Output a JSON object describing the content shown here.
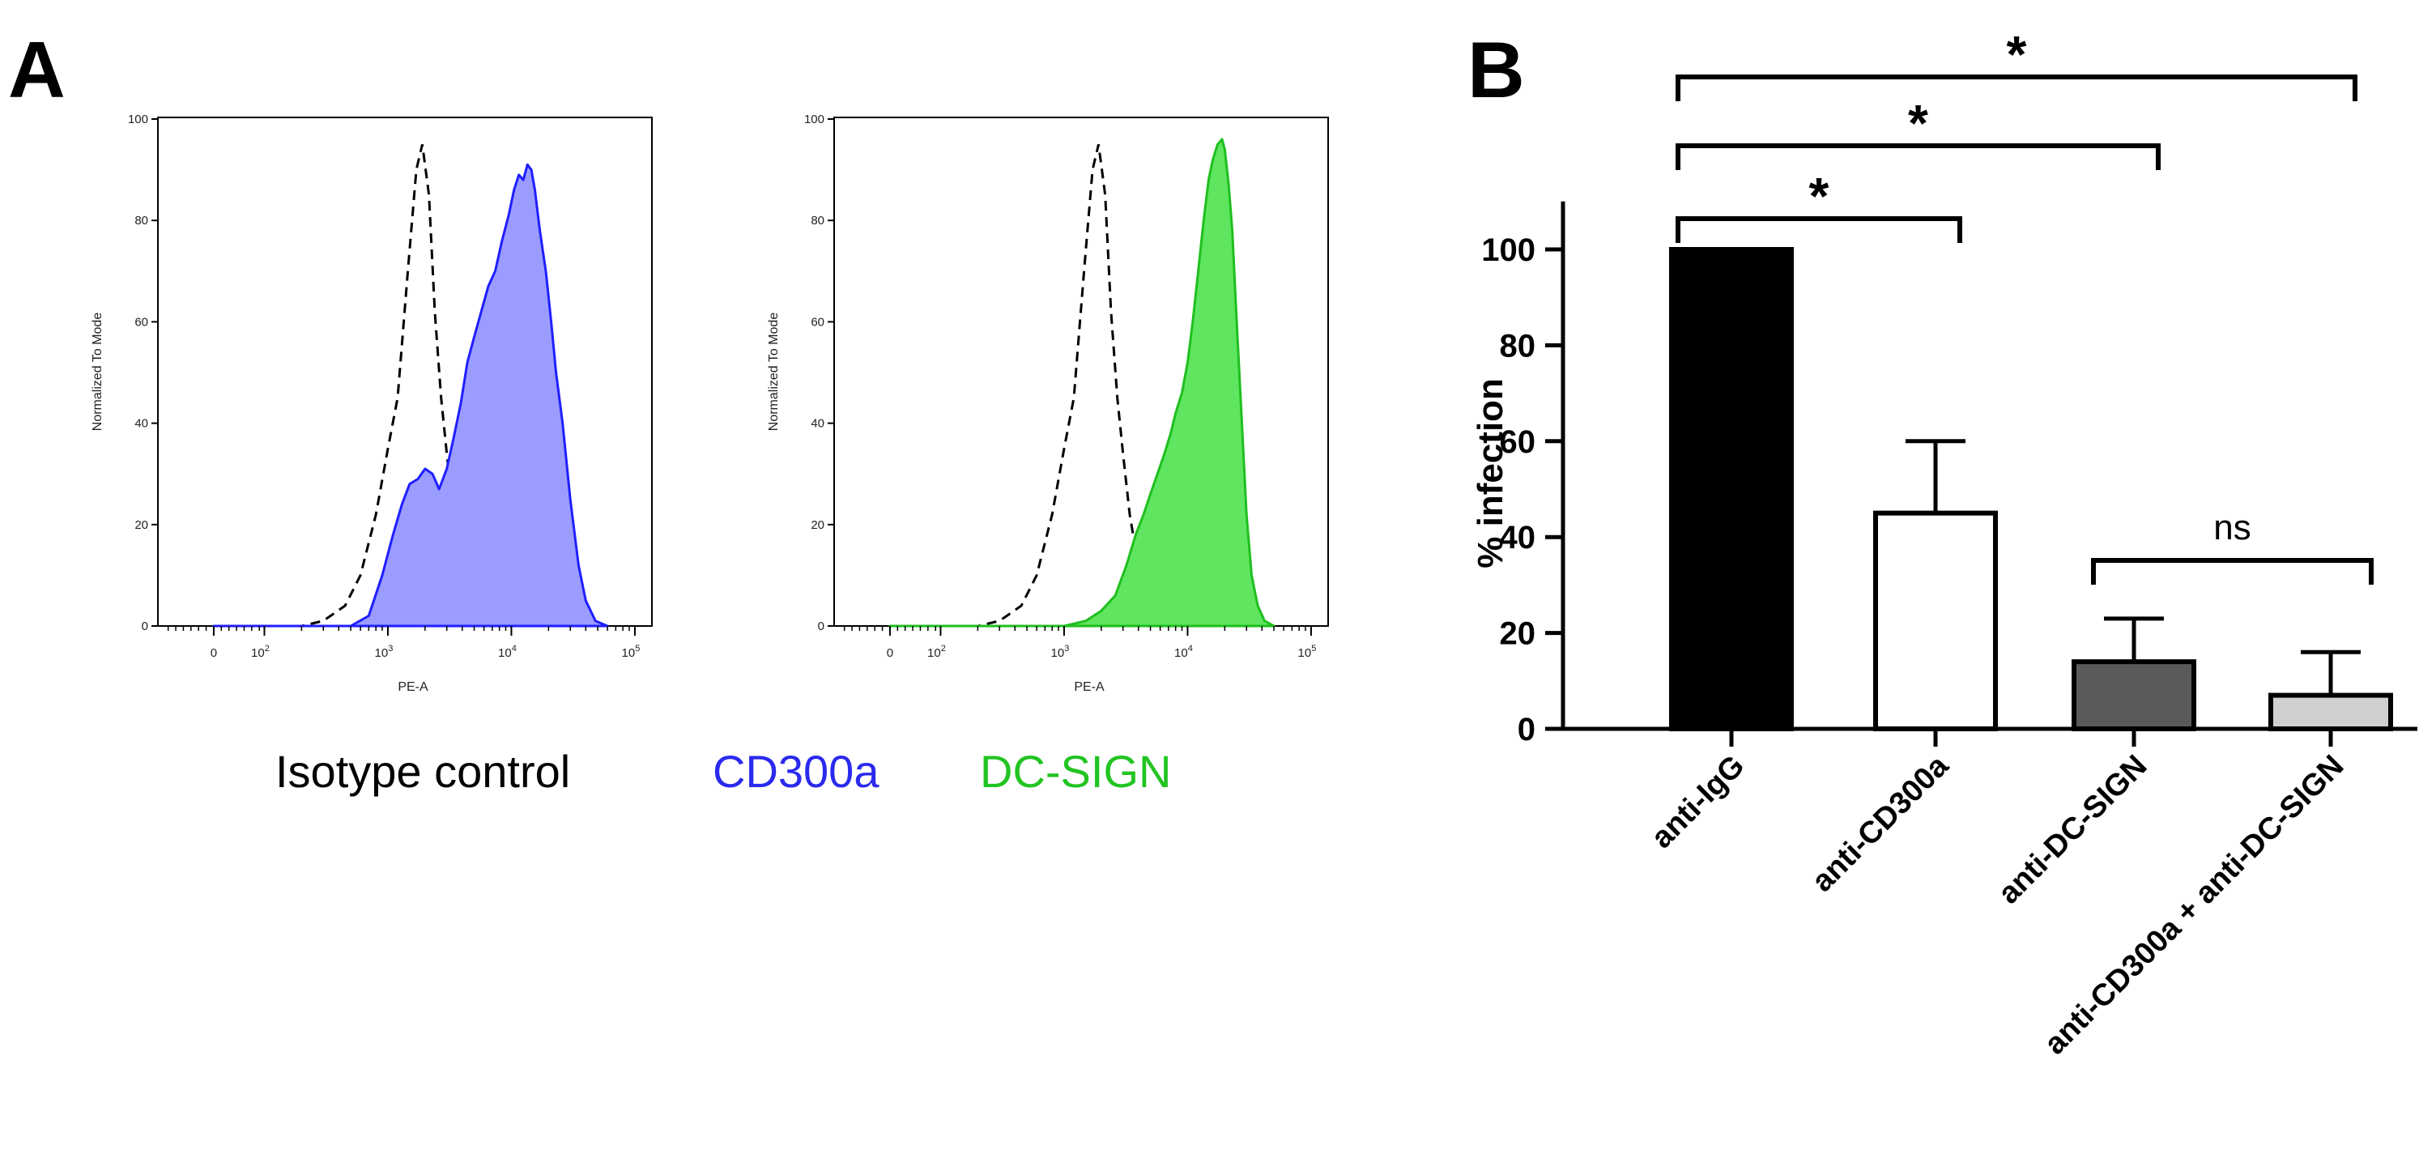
{
  "panels": {
    "a_letter": "A",
    "b_letter": "B"
  },
  "legend": [
    {
      "label": "Isotype control",
      "color": "#000000"
    },
    {
      "label": "CD300a",
      "color": "#2a2aee"
    },
    {
      "label": "DC-SIGN",
      "color": "#22c422"
    }
  ],
  "colors": {
    "cd300a_fill": "#9b9cff",
    "cd300a_line": "#1f1fff",
    "dcsign_fill": "#5fe55f",
    "dcsign_line": "#1fbf1f",
    "bar_igg": "#000000",
    "bar_cd300a": "#ffffff",
    "bar_dcsign": "#5a5a5a",
    "bar_combo": "#cfcfcf"
  },
  "chart_data": [
    {
      "type": "area",
      "panel": "A",
      "xlabel": "PE-A",
      "ylabel": "Normalized To Mode",
      "x_scale": "biexponential",
      "ylim": [
        0,
        100
      ],
      "yticks": [
        0,
        20,
        40,
        60,
        80,
        100
      ],
      "xticks": [
        {
          "value": 0,
          "label": "0"
        },
        {
          "value": 100,
          "label": "10",
          "exp": "2"
        },
        {
          "value": 1000,
          "label": "10",
          "exp": "3"
        },
        {
          "value": 10000,
          "label": "10",
          "exp": "4"
        },
        {
          "value": 100000,
          "label": "10",
          "exp": "5"
        }
      ],
      "series": [
        {
          "style": "dashed-outline",
          "points": [
            [
              0,
              0
            ],
            [
              200,
              0
            ],
            [
              300,
              1
            ],
            [
              450,
              4
            ],
            [
              600,
              10
            ],
            [
              800,
              22
            ],
            [
              1000,
              35
            ],
            [
              1200,
              45
            ],
            [
              1450,
              70
            ],
            [
              1700,
              90
            ],
            [
              1900,
              95
            ],
            [
              2150,
              85
            ],
            [
              2400,
              62
            ],
            [
              2700,
              45
            ],
            [
              3000,
              34
            ],
            [
              3400,
              22
            ],
            [
              3800,
              15
            ],
            [
              4300,
              8
            ],
            [
              5000,
              3
            ],
            [
              6000,
              1
            ],
            [
              8000,
              0
            ]
          ]
        },
        {
          "style": "filled",
          "points": [
            [
              0,
              0
            ],
            [
              500,
              0
            ],
            [
              700,
              2
            ],
            [
              900,
              10
            ],
            [
              1100,
              18
            ],
            [
              1300,
              24
            ],
            [
              1500,
              28
            ],
            [
              1750,
              29
            ],
            [
              2000,
              31
            ],
            [
              2300,
              30
            ],
            [
              2600,
              27
            ],
            [
              3000,
              31
            ],
            [
              3400,
              37
            ],
            [
              3900,
              44
            ],
            [
              4400,
              52
            ],
            [
              5000,
              57
            ],
            [
              5700,
              62
            ],
            [
              6500,
              67
            ],
            [
              7400,
              70
            ],
            [
              8400,
              76
            ],
            [
              9500,
              81
            ],
            [
              10500,
              86
            ],
            [
              11500,
              89
            ],
            [
              12500,
              88
            ],
            [
              13500,
              91
            ],
            [
              14500,
              90
            ],
            [
              15500,
              86
            ],
            [
              17000,
              78
            ],
            [
              19000,
              70
            ],
            [
              21000,
              60
            ],
            [
              23000,
              50
            ],
            [
              26000,
              40
            ],
            [
              30000,
              25
            ],
            [
              35000,
              12
            ],
            [
              40000,
              5
            ],
            [
              48000,
              1
            ],
            [
              60000,
              0
            ]
          ]
        }
      ]
    },
    {
      "type": "area",
      "panel": "A",
      "xlabel": "PE-A",
      "ylabel": "Normalized To Mode",
      "x_scale": "biexponential",
      "ylim": [
        0,
        100
      ],
      "yticks": [
        0,
        20,
        40,
        60,
        80,
        100
      ],
      "xticks": [
        {
          "value": 0,
          "label": "0"
        },
        {
          "value": 100,
          "label": "10",
          "exp": "2"
        },
        {
          "value": 1000,
          "label": "10",
          "exp": "3"
        },
        {
          "value": 10000,
          "label": "10",
          "exp": "4"
        },
        {
          "value": 100000,
          "label": "10",
          "exp": "5"
        }
      ],
      "series": [
        {
          "style": "dashed-outline",
          "points": [
            [
              0,
              0
            ],
            [
              200,
              0
            ],
            [
              300,
              1
            ],
            [
              450,
              4
            ],
            [
              600,
              10
            ],
            [
              800,
              22
            ],
            [
              1000,
              35
            ],
            [
              1200,
              45
            ],
            [
              1450,
              70
            ],
            [
              1700,
              90
            ],
            [
              1900,
              95
            ],
            [
              2150,
              85
            ],
            [
              2400,
              62
            ],
            [
              2700,
              45
            ],
            [
              3000,
              34
            ],
            [
              3400,
              22
            ],
            [
              3800,
              15
            ],
            [
              4300,
              8
            ],
            [
              5000,
              3
            ],
            [
              6000,
              1
            ],
            [
              8000,
              0
            ]
          ]
        },
        {
          "style": "filled",
          "points": [
            [
              0,
              0
            ],
            [
              1000,
              0
            ],
            [
              1500,
              1
            ],
            [
              2000,
              3
            ],
            [
              2600,
              6
            ],
            [
              3200,
              12
            ],
            [
              3800,
              18
            ],
            [
              4400,
              22
            ],
            [
              5000,
              26
            ],
            [
              5700,
              30
            ],
            [
              6500,
              34
            ],
            [
              7300,
              38
            ],
            [
              8000,
              42
            ],
            [
              9000,
              46
            ],
            [
              10000,
              52
            ],
            [
              11000,
              60
            ],
            [
              12200,
              70
            ],
            [
              13500,
              80
            ],
            [
              14800,
              88
            ],
            [
              16000,
              92
            ],
            [
              17500,
              95
            ],
            [
              19000,
              96
            ],
            [
              20000,
              94
            ],
            [
              21500,
              87
            ],
            [
              23000,
              78
            ],
            [
              25000,
              60
            ],
            [
              27500,
              40
            ],
            [
              30000,
              22
            ],
            [
              33000,
              10
            ],
            [
              37000,
              4
            ],
            [
              42000,
              1
            ],
            [
              50000,
              0
            ]
          ]
        }
      ]
    },
    {
      "type": "bar",
      "panel": "B",
      "categories": [
        "anti-IgG",
        "anti-CD300a",
        "anti-DC-SIGN",
        "anti-CD300a + anti-DC-SIGN"
      ],
      "values": [
        100,
        45,
        14,
        7
      ],
      "errors": [
        0,
        15,
        9,
        9
      ],
      "ylabel": "% infection",
      "ylim": [
        0,
        110
      ],
      "yticks": [
        0,
        20,
        40,
        60,
        80,
        100
      ],
      "annotations": [
        {
          "from": 0,
          "to": 1,
          "label": "*"
        },
        {
          "from": 0,
          "to": 2,
          "label": "*"
        },
        {
          "from": 0,
          "to": 3,
          "label": "*"
        },
        {
          "from": 2,
          "to": 3,
          "label": "ns"
        }
      ]
    }
  ]
}
